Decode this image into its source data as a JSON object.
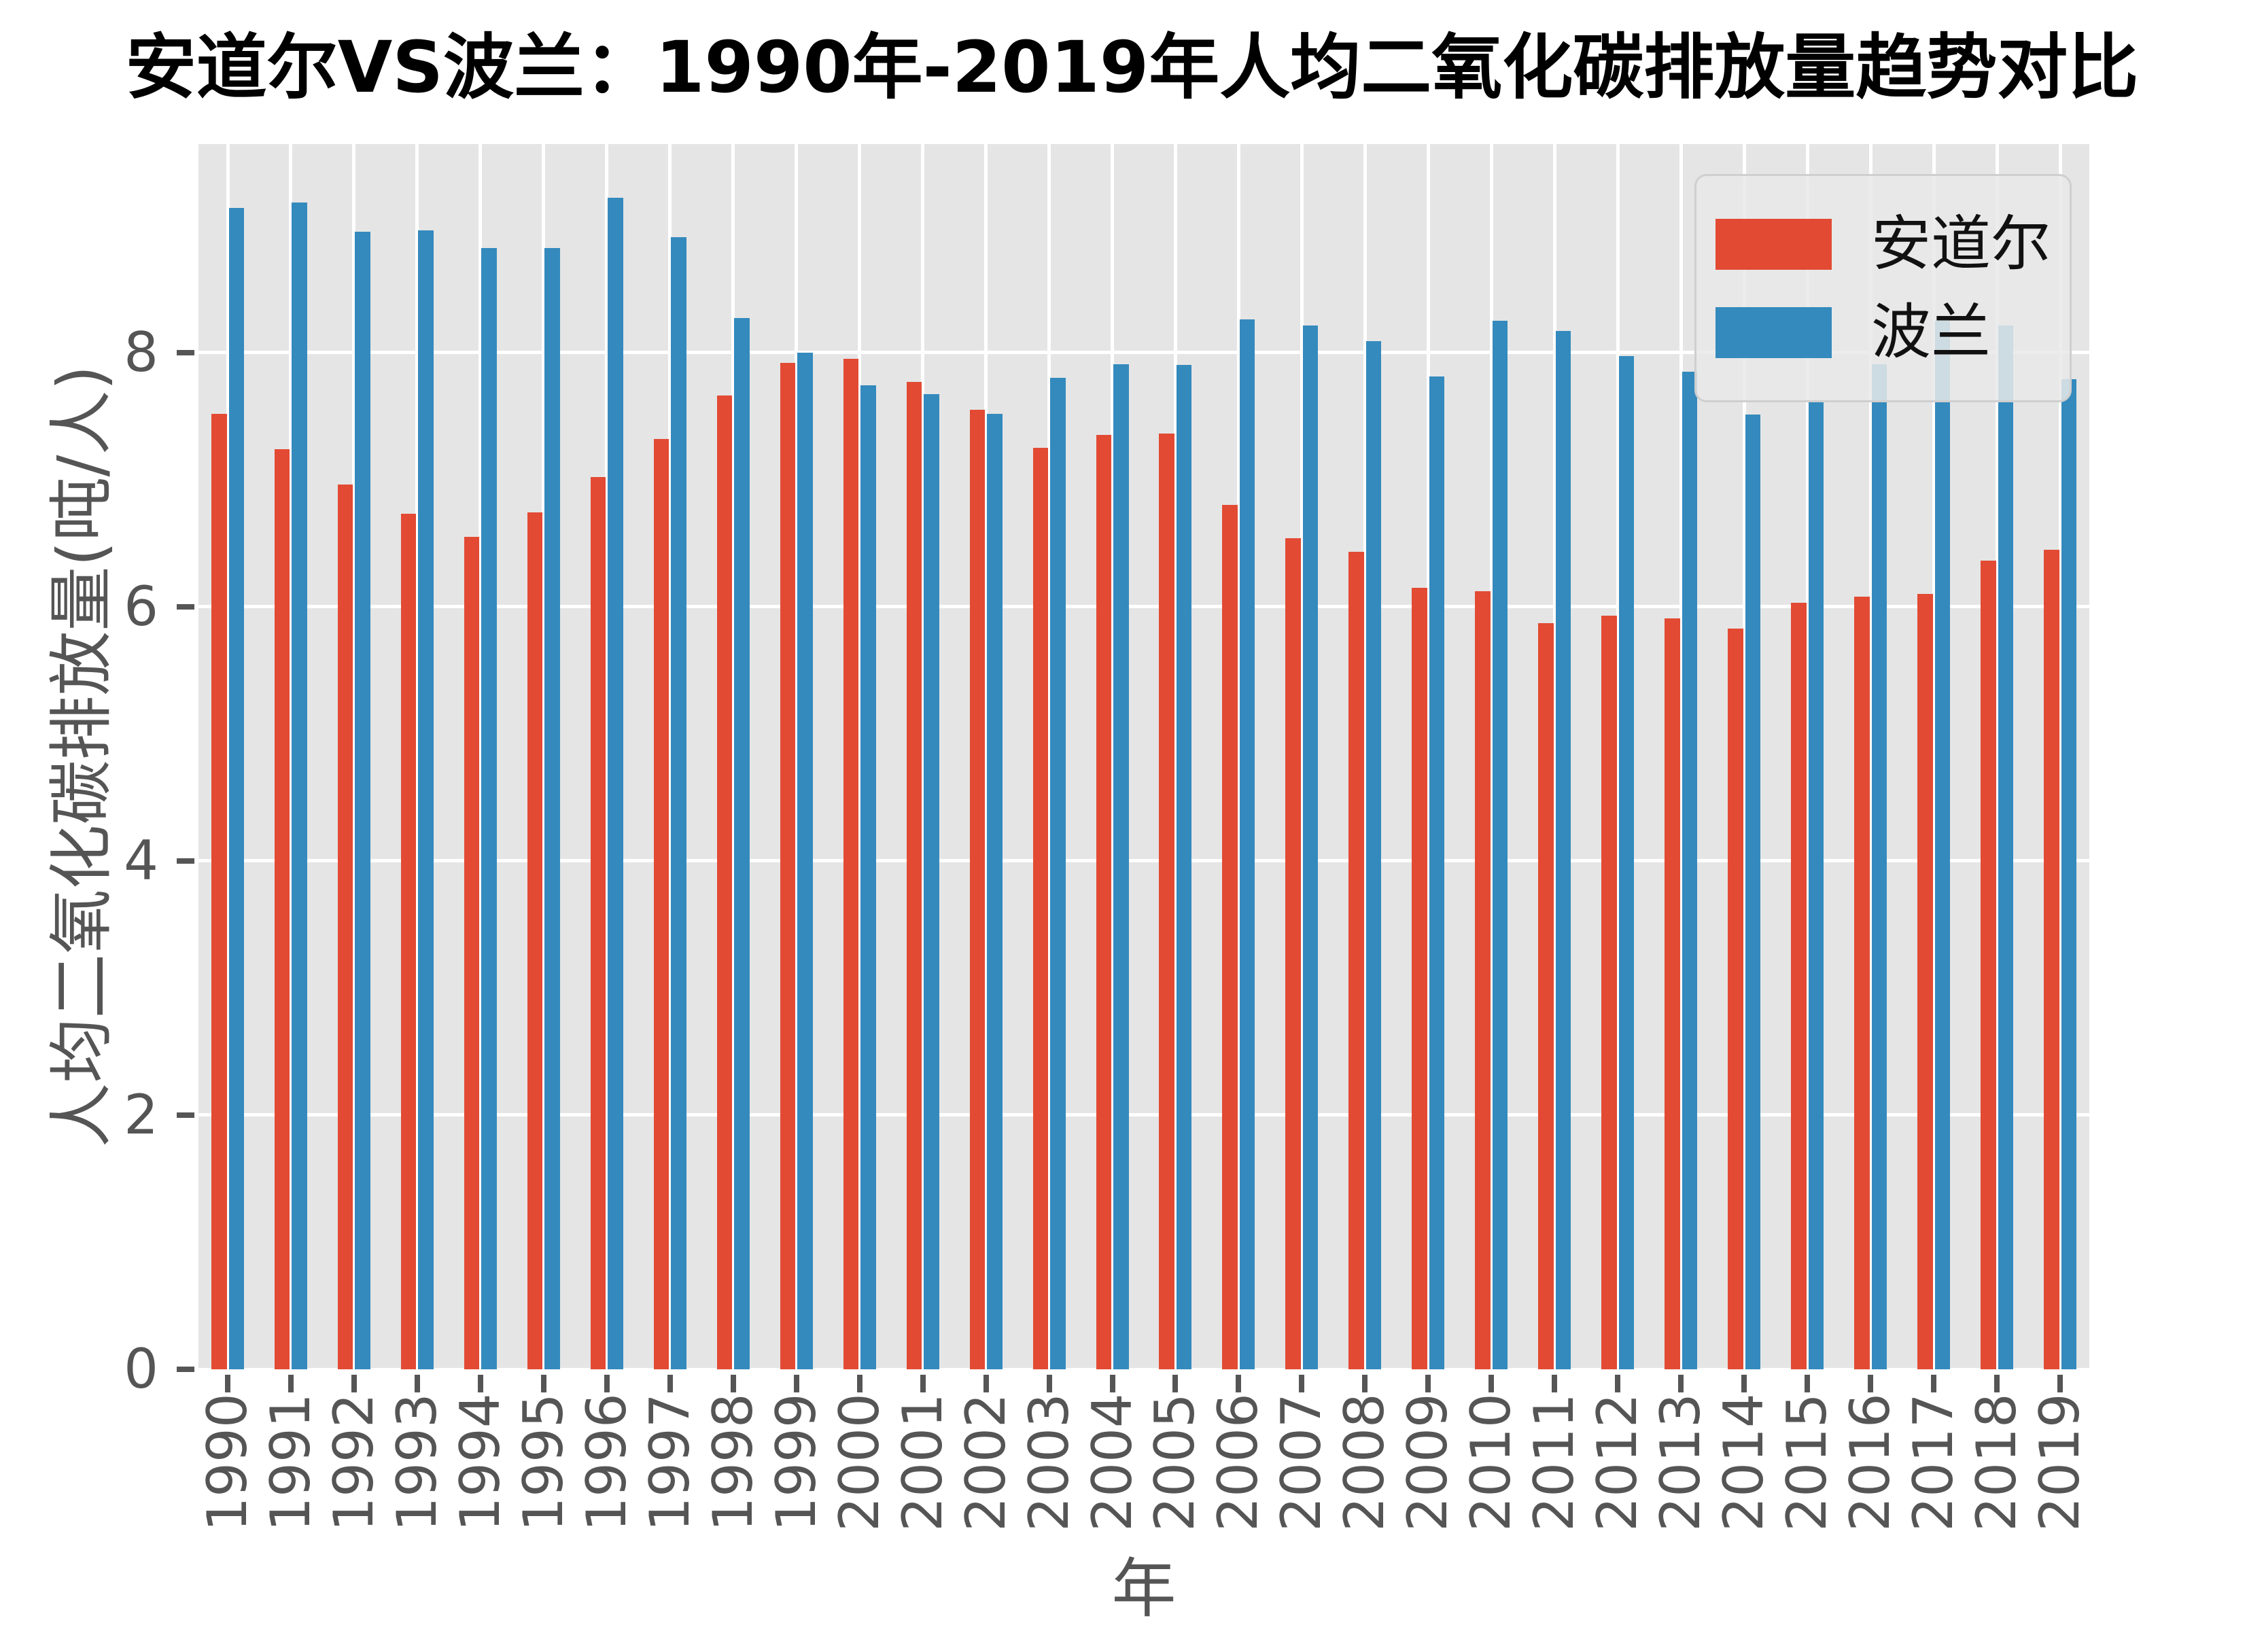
{
  "chart_data": {
    "type": "bar",
    "title": "安道尔VS波兰：1990年-2019年人均二氧化碳排放量趋势对比",
    "xlabel": "年",
    "ylabel": "人均二氧化碳排放量(吨/人)",
    "categories": [
      "1990",
      "1991",
      "1992",
      "1993",
      "1994",
      "1995",
      "1996",
      "1997",
      "1998",
      "1999",
      "2000",
      "2001",
      "2002",
      "2003",
      "2004",
      "2005",
      "2006",
      "2007",
      "2008",
      "2009",
      "2010",
      "2011",
      "2012",
      "2013",
      "2014",
      "2015",
      "2016",
      "2017",
      "2018",
      "2019"
    ],
    "series": [
      {
        "name": "安道尔",
        "color": "#E24A33",
        "values": [
          7.52,
          7.24,
          6.96,
          6.73,
          6.55,
          6.74,
          7.02,
          7.32,
          7.66,
          7.92,
          7.95,
          7.77,
          7.55,
          7.25,
          7.35,
          7.36,
          6.8,
          6.54,
          6.43,
          6.15,
          6.12,
          5.87,
          5.93,
          5.91,
          5.83,
          6.03,
          6.08,
          6.1,
          6.36,
          6.45
        ]
      },
      {
        "name": "波兰",
        "color": "#348ABD",
        "values": [
          9.14,
          9.18,
          8.95,
          8.96,
          8.82,
          8.82,
          9.22,
          8.91,
          8.27,
          8.0,
          7.74,
          7.67,
          7.52,
          7.8,
          7.91,
          7.9,
          8.26,
          8.21,
          8.09,
          7.81,
          8.25,
          8.17,
          7.97,
          7.85,
          7.51,
          7.61,
          7.91,
          8.25,
          8.21,
          7.79
        ]
      }
    ],
    "yticks": [
      0,
      2,
      4,
      6,
      8
    ],
    "ylim": [
      0,
      9.64
    ],
    "grid": true,
    "grid_color": "#FFFFFF",
    "plot_background": "#E5E5E5",
    "tick_color": "#555555",
    "legend_position": "upper right"
  }
}
